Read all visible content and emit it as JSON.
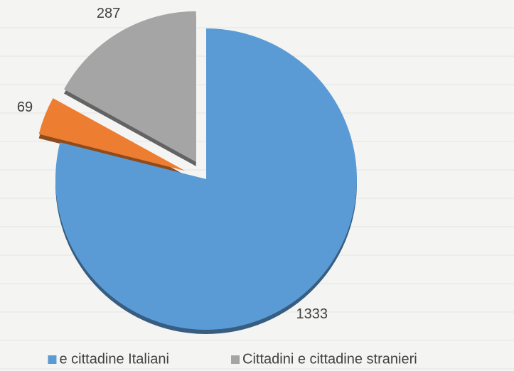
{
  "chart_data": {
    "type": "pie",
    "categories": [
      "e cittadine Italiani",
      null,
      "Cittadini e cittadine stranieri"
    ],
    "values": [
      1333,
      69,
      287
    ],
    "colors": [
      "#5b9bd5",
      "#ed7d31",
      "#a5a5a5"
    ],
    "legend": "bottom"
  }
}
